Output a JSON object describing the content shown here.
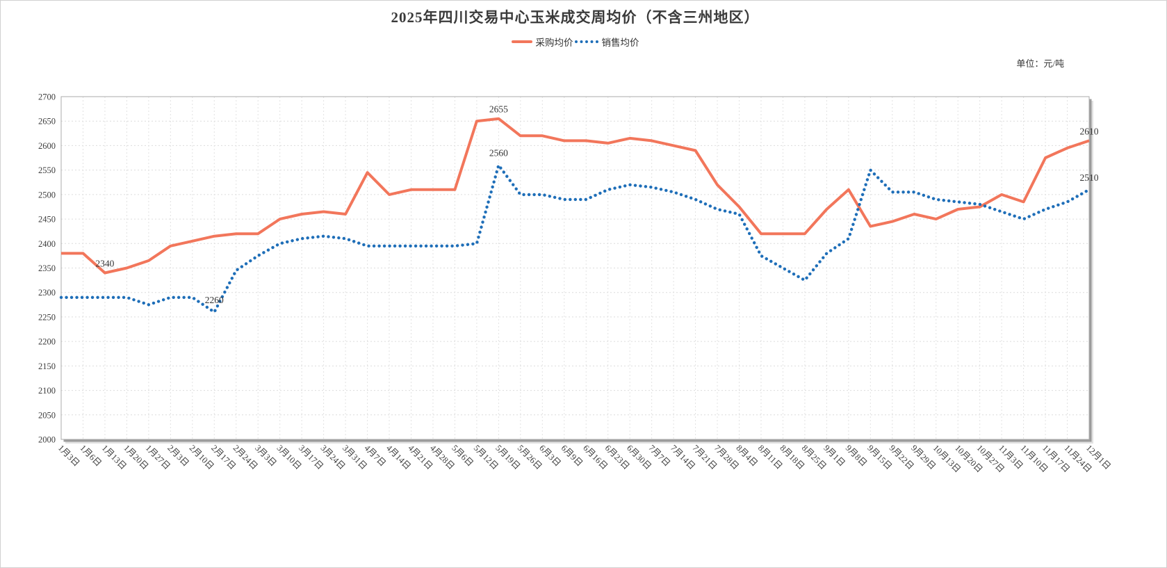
{
  "title": "2025年四川交易中心玉米成交周均价（不含三州地区）",
  "unit_label": "单位：元/吨",
  "legend": [
    {
      "label": "采购均价",
      "color": "#f2765b",
      "style": "solid"
    },
    {
      "label": "销售均价",
      "color": "#1e6eb8",
      "style": "dotted"
    }
  ],
  "chart_data": {
    "type": "line",
    "title": "2025年四川交易中心玉米成交周均价（不含三州地区）",
    "xlabel": "",
    "ylabel": "元/吨",
    "ylim": [
      2000,
      2700
    ],
    "ytick_step": 50,
    "grid": true,
    "legend_position": "top-center",
    "categories": [
      "1月3日",
      "1月6日",
      "1月13日",
      "1月20日",
      "1月27日",
      "2月3日",
      "2月10日",
      "2月17日",
      "2月24日",
      "3月3日",
      "3月10日",
      "3月17日",
      "3月24日",
      "3月31日",
      "4月7日",
      "4月14日",
      "4月21日",
      "4月28日",
      "5月6日",
      "5月12日",
      "5月19日",
      "5月26日",
      "6月3日",
      "6月9日",
      "6月16日",
      "6月23日",
      "6月30日",
      "7月7日",
      "7月14日",
      "7月21日",
      "7月28日",
      "8月4日",
      "8月11日",
      "8月18日",
      "8月25日",
      "9月1日",
      "9月8日",
      "9月15日",
      "9月22日",
      "9月29日",
      "10月13日",
      "10月20日",
      "10月27日",
      "11月3日",
      "11月10日",
      "11月17日",
      "11月24日",
      "12月1日"
    ],
    "series": [
      {
        "name": "采购均价",
        "color": "#f2765b",
        "line_style": "solid",
        "values": [
          2380,
          2380,
          2340,
          2350,
          2365,
          2395,
          2405,
          2415,
          2420,
          2420,
          2450,
          2460,
          2465,
          2460,
          2545,
          2500,
          2510,
          2510,
          2510,
          2650,
          2655,
          2620,
          2620,
          2610,
          2610,
          2605,
          2615,
          2610,
          2600,
          2590,
          2520,
          2475,
          2420,
          2420,
          2420,
          2470,
          2510,
          2435,
          2445,
          2460,
          2450,
          2470,
          2475,
          2500,
          2485,
          2575,
          2595,
          2610
        ]
      },
      {
        "name": "销售均价",
        "color": "#1e6eb8",
        "line_style": "dotted",
        "values": [
          2290,
          2290,
          2290,
          2290,
          2275,
          2290,
          2290,
          2260,
          2345,
          2375,
          2400,
          2410,
          2415,
          2410,
          2395,
          2395,
          2395,
          2395,
          2395,
          2400,
          2560,
          2500,
          2500,
          2490,
          2490,
          2510,
          2520,
          2515,
          2505,
          2490,
          2470,
          2460,
          2375,
          2350,
          2325,
          2380,
          2410,
          2550,
          2505,
          2505,
          2490,
          2485,
          2480,
          2465,
          2450,
          2470,
          2485,
          2510
        ]
      }
    ],
    "point_labels": [
      {
        "series": 0,
        "index": 2,
        "text": "2340"
      },
      {
        "series": 1,
        "index": 7,
        "text": "2260"
      },
      {
        "series": 0,
        "index": 20,
        "text": "2655"
      },
      {
        "series": 1,
        "index": 20,
        "text": "2560"
      },
      {
        "series": 0,
        "index": 47,
        "text": "2610"
      },
      {
        "series": 1,
        "index": 47,
        "text": "2510"
      }
    ]
  }
}
